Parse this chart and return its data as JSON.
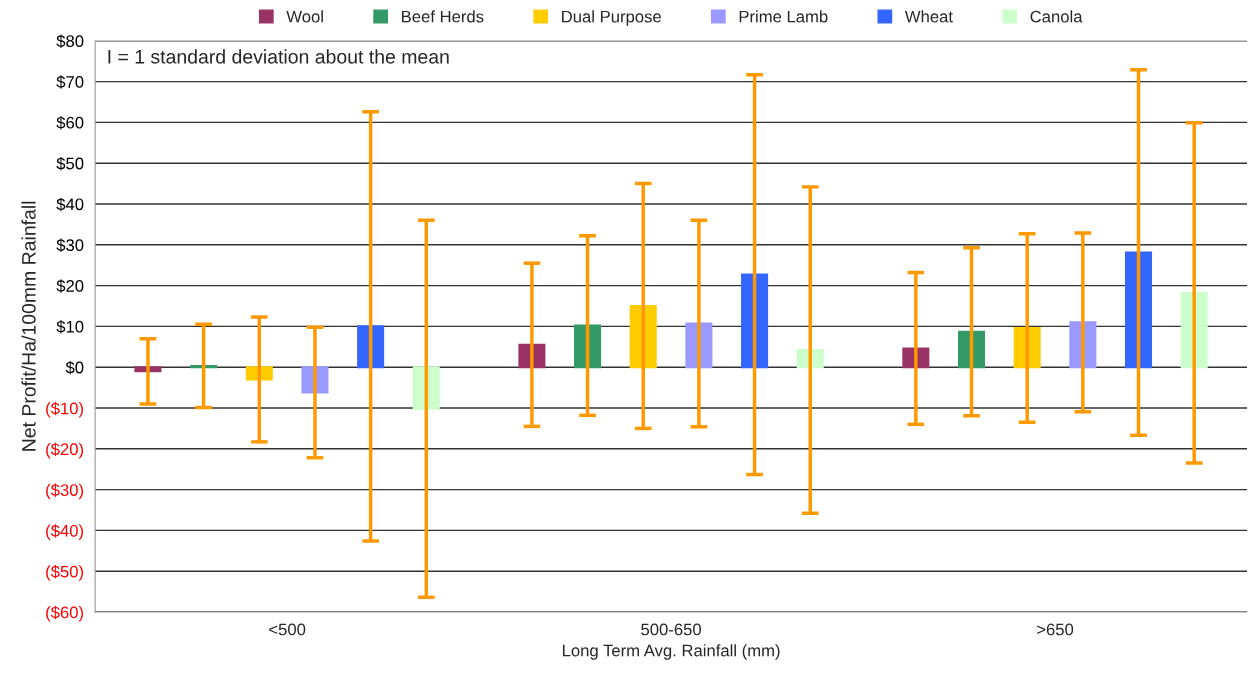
{
  "chart_data": {
    "type": "bar",
    "xlabel": "Long Term Avg. Rainfall (mm)",
    "ylabel": "Net Profit/Ha/100mm Rainfall",
    "categories": [
      "<500",
      "500-650",
      ">650"
    ],
    "series": [
      {
        "name": "Wool",
        "color": "#993366",
        "values": [
          -1,
          5.5,
          4.6
        ],
        "errors": [
          8,
          20,
          18.6
        ]
      },
      {
        "name": "Beef Herds",
        "color": "#339966",
        "values": [
          0.3,
          10.2,
          8.7
        ],
        "errors": [
          10.2,
          22,
          20.6
        ]
      },
      {
        "name": "Dual Purpose",
        "color": "#ffcc00",
        "values": [
          -3,
          15,
          9.6
        ],
        "errors": [
          15.3,
          30,
          23.1
        ]
      },
      {
        "name": "Prime Lamb",
        "color": "#9999ff",
        "values": [
          -6.2,
          10.7,
          11
        ],
        "errors": [
          16,
          25.3,
          21.9
        ]
      },
      {
        "name": "Wheat",
        "color": "#3366ff",
        "values": [
          10,
          22.7,
          28.1
        ],
        "errors": [
          52.6,
          49,
          44.8
        ]
      },
      {
        "name": "Canola",
        "color": "#ccffcc",
        "values": [
          -10.2,
          4.2,
          18.2
        ],
        "errors": [
          46.2,
          40,
          41.7
        ]
      }
    ],
    "ylim": [
      -60,
      80
    ],
    "yticks": [
      {
        "value": -60,
        "label": "($60)"
      },
      {
        "value": -50,
        "label": "($50)"
      },
      {
        "value": -40,
        "label": "($40)"
      },
      {
        "value": -30,
        "label": "($30)"
      },
      {
        "value": -20,
        "label": "($20)"
      },
      {
        "value": -10,
        "label": "($10)"
      },
      {
        "value": 0,
        "label": "$0"
      },
      {
        "value": 10,
        "label": "$10"
      },
      {
        "value": 20,
        "label": "$20"
      },
      {
        "value": 30,
        "label": "$30"
      },
      {
        "value": 40,
        "label": "$40"
      },
      {
        "value": 50,
        "label": "$50"
      },
      {
        "value": 60,
        "label": "$60"
      },
      {
        "value": 70,
        "label": "$70"
      },
      {
        "value": 80,
        "label": "$80"
      }
    ],
    "grid": "y",
    "legend": "top",
    "annotations": [
      "I = 1 standard deviation about the mean"
    ]
  }
}
